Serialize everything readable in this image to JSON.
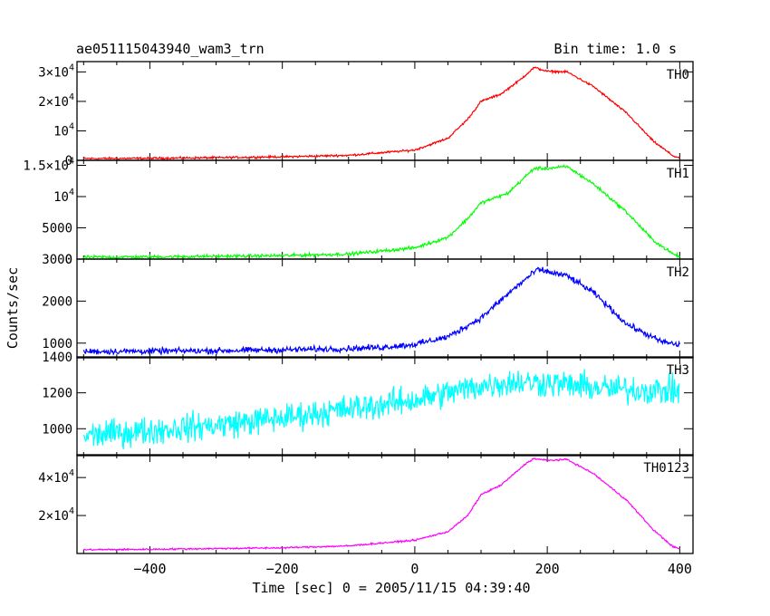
{
  "header": {
    "title": "ae051115043940_wam3_trn",
    "bin_time": "Bin time: 1.0 s"
  },
  "chart_data": {
    "type": "line",
    "xlabel": "Time [sec] 0 = 2005/11/15 04:39:40",
    "ylabel": "Counts/sec",
    "xlim": [
      -510,
      420
    ],
    "x_ticks": [
      -400,
      -200,
      0,
      200,
      400
    ],
    "colors": {
      "TH0": "#ff0000",
      "TH1": "#00ff00",
      "TH2": "#0000ff",
      "TH3": "#00ffff",
      "TH0123": "#ff00ff"
    },
    "panels": [
      {
        "name": "TH0",
        "color": "#ff0000",
        "ylim": [
          0,
          33500
        ],
        "ticks": [
          {
            "v": 0,
            "base": "0"
          },
          {
            "v": 10000,
            "base": "10",
            "exp": "4"
          },
          {
            "v": 20000,
            "base": "2×10",
            "exp": "4"
          },
          {
            "v": 30000,
            "base": "3×10",
            "exp": "4"
          }
        ],
        "noise": 250,
        "profile": [
          [
            -500,
            600
          ],
          [
            -400,
            700
          ],
          [
            -300,
            900
          ],
          [
            -200,
            1200
          ],
          [
            -100,
            1700
          ],
          [
            0,
            3500
          ],
          [
            50,
            7500
          ],
          [
            80,
            14000
          ],
          [
            100,
            20000
          ],
          [
            130,
            22500
          ],
          [
            160,
            27500
          ],
          [
            180,
            31500
          ],
          [
            200,
            30200
          ],
          [
            230,
            30000
          ],
          [
            270,
            25000
          ],
          [
            320,
            16000
          ],
          [
            360,
            6500
          ],
          [
            390,
            1500
          ],
          [
            400,
            800
          ]
        ]
      },
      {
        "name": "TH1",
        "color": "#00ff00",
        "ylim": [
          0,
          15800
        ],
        "ticks": [
          {
            "v": 0,
            "base": "0"
          },
          {
            "v": 5000,
            "base": "5000"
          },
          {
            "v": 10000,
            "base": "10",
            "exp": "4"
          },
          {
            "v": 15000,
            "base": "1.5×10",
            "exp": "4"
          }
        ],
        "noise": 180,
        "profile": [
          [
            -500,
            300
          ],
          [
            -400,
            350
          ],
          [
            -300,
            450
          ],
          [
            -200,
            550
          ],
          [
            -100,
            800
          ],
          [
            0,
            1800
          ],
          [
            50,
            3500
          ],
          [
            80,
            6500
          ],
          [
            100,
            9000
          ],
          [
            140,
            10500
          ],
          [
            180,
            14500
          ],
          [
            200,
            14500
          ],
          [
            230,
            14800
          ],
          [
            270,
            12000
          ],
          [
            320,
            7500
          ],
          [
            360,
            3000
          ],
          [
            390,
            800
          ],
          [
            400,
            400
          ]
        ]
      },
      {
        "name": "TH2",
        "color": "#0000ff",
        "ylim": [
          650,
          3000
        ],
        "ticks": [
          {
            "v": 1000,
            "base": "1000"
          },
          {
            "v": 2000,
            "base": "2000"
          },
          {
            "v": 3000,
            "base": "3000"
          }
        ],
        "noise": 50,
        "profile": [
          [
            -500,
            800
          ],
          [
            -400,
            810
          ],
          [
            -300,
            820
          ],
          [
            -200,
            840
          ],
          [
            -100,
            870
          ],
          [
            -50,
            900
          ],
          [
            0,
            970
          ],
          [
            50,
            1150
          ],
          [
            100,
            1600
          ],
          [
            150,
            2300
          ],
          [
            185,
            2750
          ],
          [
            200,
            2700
          ],
          [
            230,
            2600
          ],
          [
            270,
            2200
          ],
          [
            320,
            1450
          ],
          [
            370,
            1050
          ],
          [
            400,
            950
          ]
        ]
      },
      {
        "name": "TH3",
        "color": "#00ffff",
        "ylim": [
          850,
          1400
        ],
        "ticks": [
          {
            "v": 1000,
            "base": "1000"
          },
          {
            "v": 1200,
            "base": "1200"
          },
          {
            "v": 1400,
            "base": "1400"
          }
        ],
        "noise": 55,
        "profile": [
          [
            -500,
            960
          ],
          [
            -400,
            990
          ],
          [
            -300,
            1020
          ],
          [
            -200,
            1060
          ],
          [
            -100,
            1110
          ],
          [
            0,
            1160
          ],
          [
            100,
            1240
          ],
          [
            150,
            1260
          ],
          [
            200,
            1255
          ],
          [
            300,
            1220
          ],
          [
            400,
            1210
          ]
        ]
      },
      {
        "name": "TH0123",
        "color": "#ff00ff",
        "ylim": [
          0,
          52000
        ],
        "ticks": [
          {
            "v": 20000,
            "base": "2×10",
            "exp": "4"
          },
          {
            "v": 40000,
            "base": "4×10",
            "exp": "4"
          }
        ],
        "noise": 300,
        "profile": [
          [
            -500,
            2000
          ],
          [
            -400,
            2200
          ],
          [
            -300,
            2600
          ],
          [
            -200,
            3000
          ],
          [
            -100,
            4000
          ],
          [
            0,
            7000
          ],
          [
            50,
            11500
          ],
          [
            80,
            20000
          ],
          [
            100,
            31000
          ],
          [
            130,
            36000
          ],
          [
            170,
            48000
          ],
          [
            180,
            50000
          ],
          [
            200,
            49000
          ],
          [
            230,
            49500
          ],
          [
            270,
            42000
          ],
          [
            320,
            28000
          ],
          [
            360,
            12500
          ],
          [
            390,
            3500
          ],
          [
            400,
            2500
          ]
        ]
      }
    ]
  }
}
